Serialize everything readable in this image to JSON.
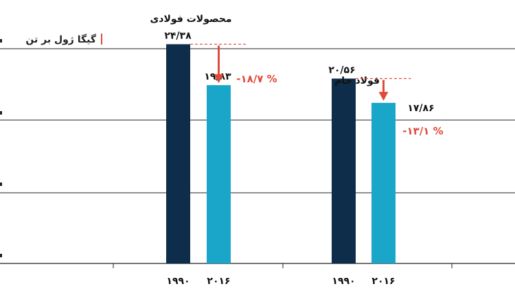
{
  "chart_data": {
    "type": "bar",
    "ylabel": "گیگا ژول بر تن",
    "ylim": [
      0,
      28
    ],
    "grid": true,
    "colors": {
      "y1990": "#0e2d4a",
      "y2016": "#1aa6c8",
      "change": "#e04a3a",
      "grid": "#222222"
    },
    "groups": [
      {
        "title": "محصولات فولادی",
        "bars": [
          {
            "year": "۱۹۹۰",
            "value": 24.38,
            "label": "۲۴/۳۸"
          },
          {
            "year": "۲۰۱۶",
            "value": 19.83,
            "label": "۱۹/۸۳"
          }
        ],
        "change_label": "-۱۸/۷ %"
      },
      {
        "title": "فولاد خام",
        "bars": [
          {
            "year": "۱۹۹۰",
            "value": 20.56,
            "label": "۲۰/۵۶"
          },
          {
            "year": "۲۰۱۶",
            "value": 17.86,
            "label": "۱۷/۸۶"
          }
        ],
        "change_label": "-۱۳/۱ %"
      }
    ]
  }
}
